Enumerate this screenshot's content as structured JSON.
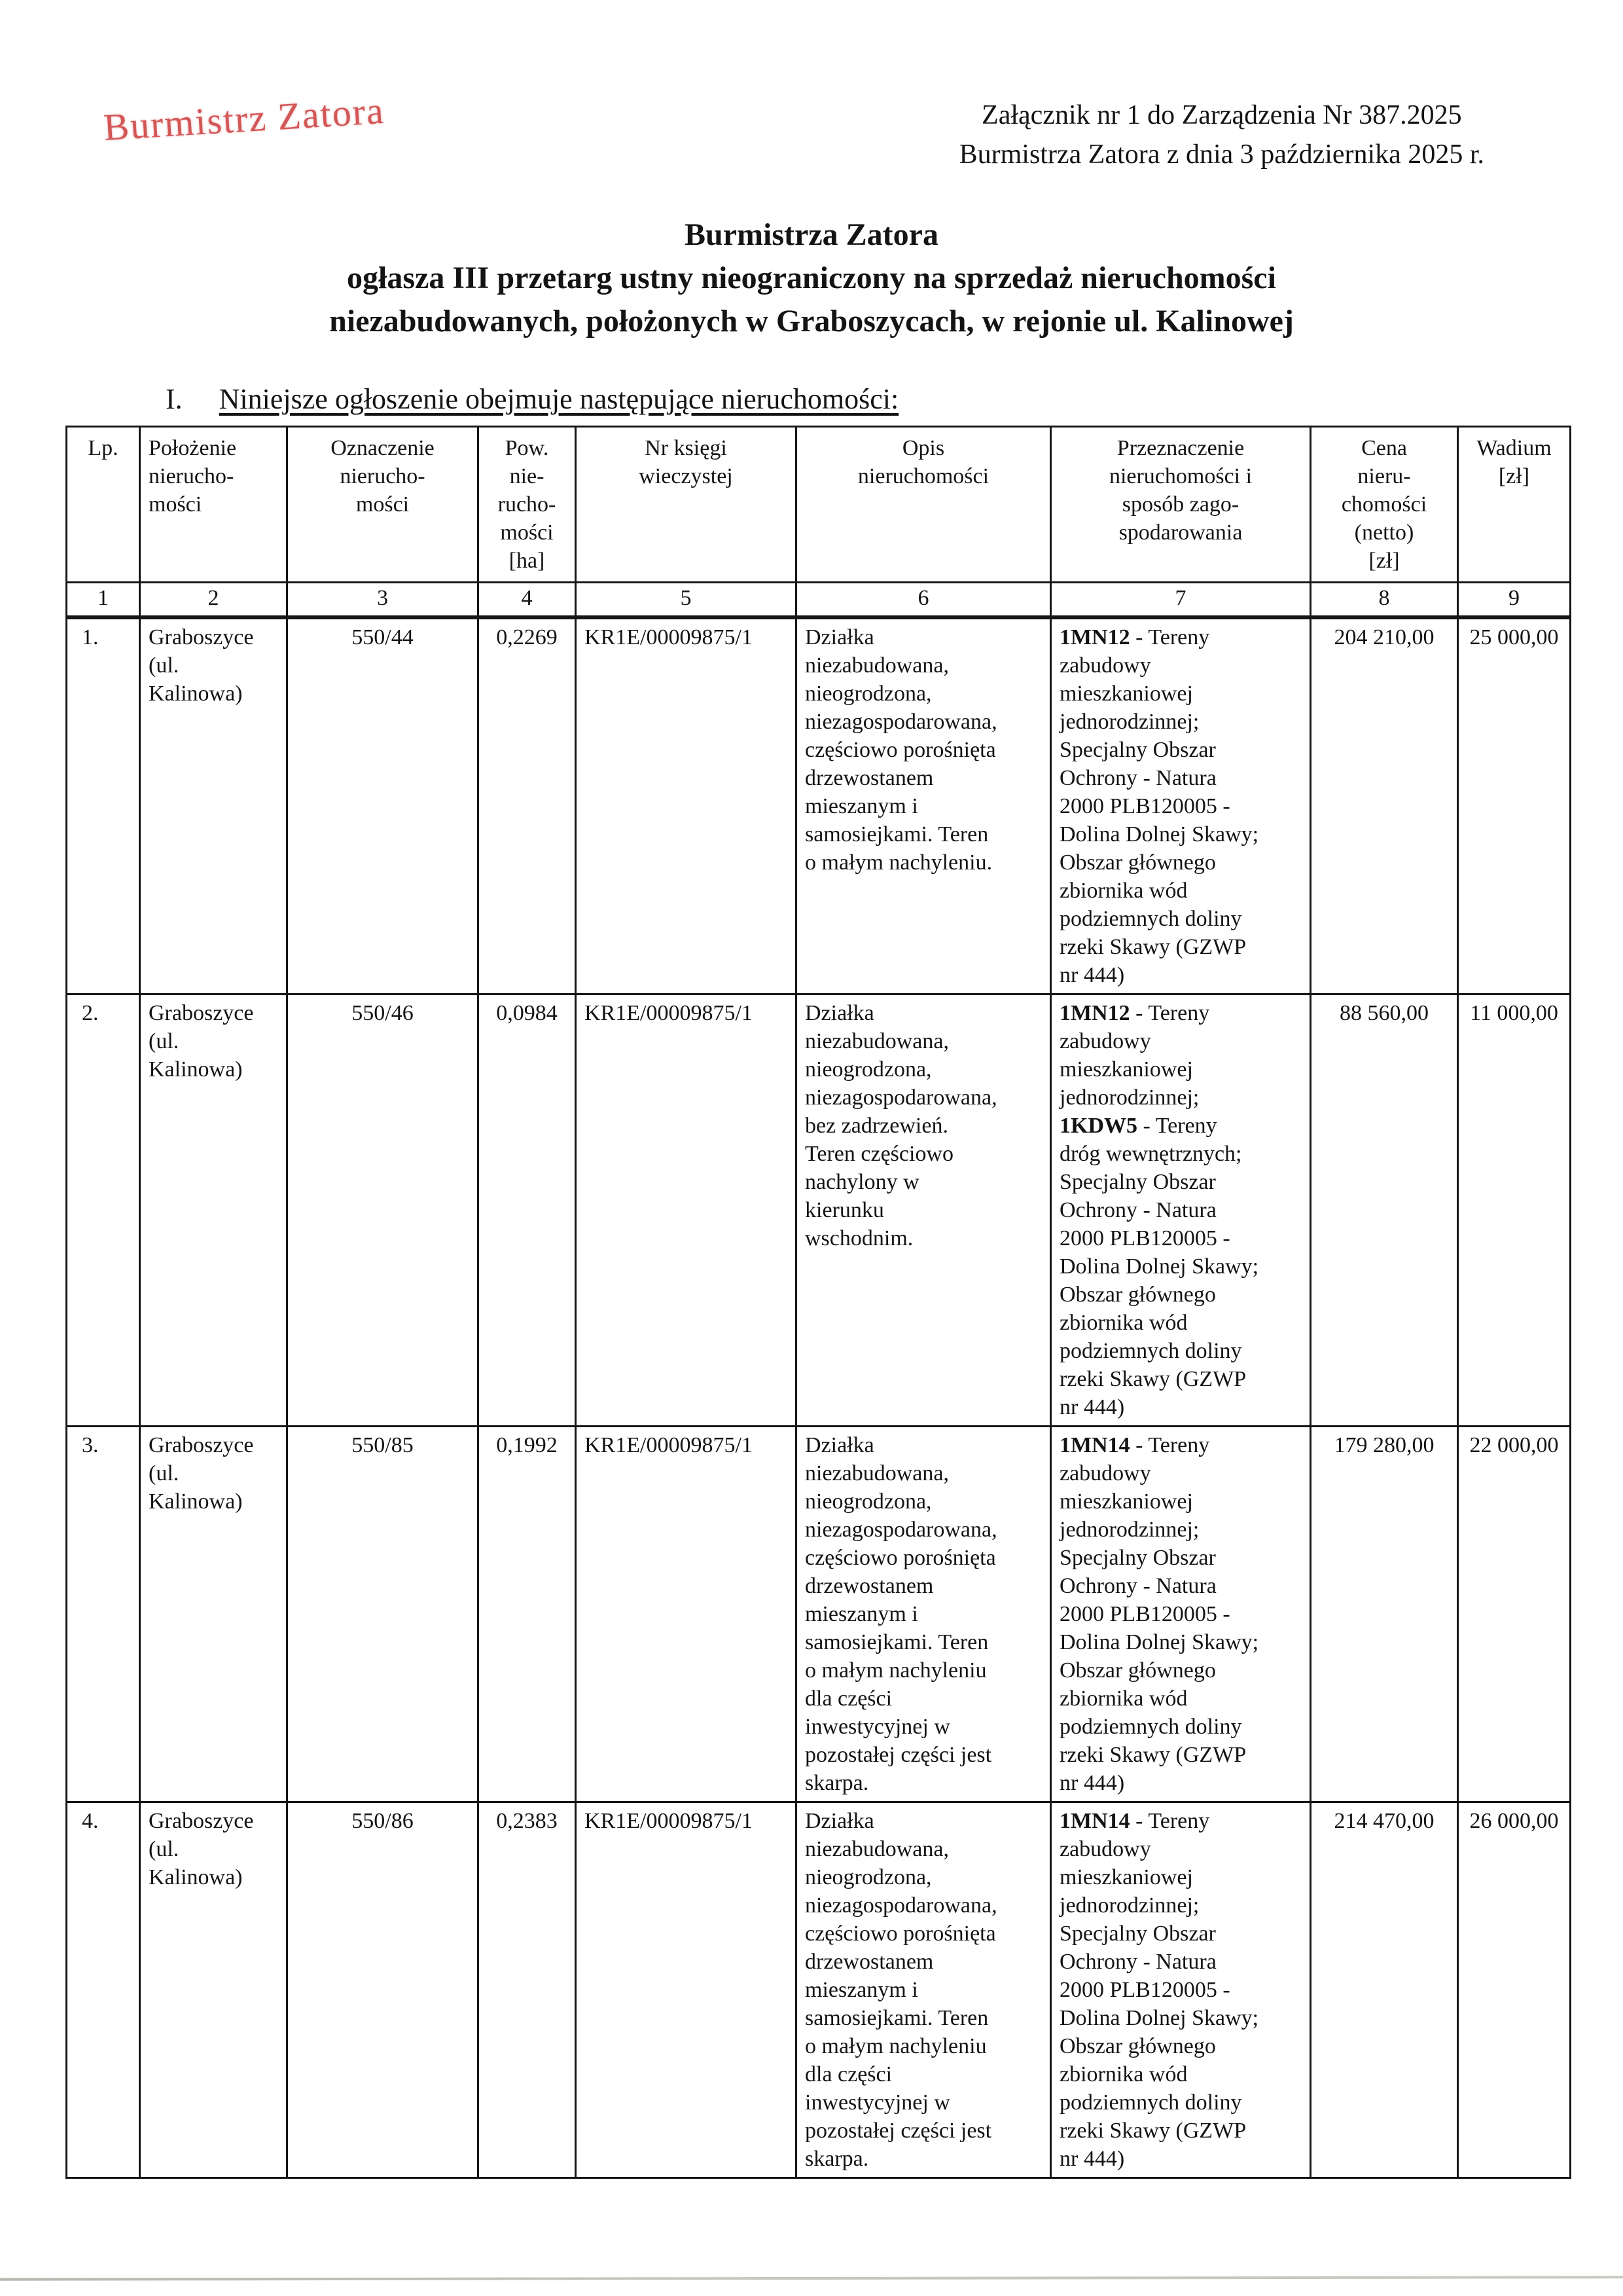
{
  "page": {
    "stamp_text": "Burmistrz Zatora",
    "attachment_line1": "Załącznik nr 1 do Zarządzenia Nr 387.2025",
    "attachment_line2": "Burmistrza Zatora z dnia 3 października 2025 r.",
    "title_line1": "Burmistrza Zatora",
    "title_line2": "ogłasza III przetarg ustny nieograniczony na sprzedaż nieruchomości",
    "title_line3": "niezabudowanych, położonych w Graboszycach, w rejonie ul. Kalinowej",
    "section_numeral": "I.",
    "section_text": "Niniejsze ogłoszenie obejmuje następujące nieruchomości:"
  },
  "colors": {
    "stamp_red": "#ce4040",
    "ink_black": "#141414"
  },
  "table": {
    "headers": [
      "Lp.",
      "Położenie\nnierucho-\nmości",
      "Oznaczenie\nnierucho-\nmości",
      "Pow.\nnie-\nrucho-\nmości\n[ha]",
      "Nr księgi\nwieczystej",
      "Opis\nnieruchomości",
      "Przeznaczenie\nnieruchomości i\nsposób zago-\nspodarowania",
      "Cena\nnieru-\nchomości\n(netto)\n[zł]",
      "Wadium\n[zł]"
    ],
    "column_numbers": [
      "1",
      "2",
      "3",
      "4",
      "5",
      "6",
      "7",
      "8",
      "9"
    ],
    "rows": [
      {
        "lp": "1.",
        "location": "Graboszyce\n(ul. Kalinowa)",
        "plot": "550/44",
        "area_ha": "0,2269",
        "land_register": "KR1E/00009875/1",
        "description": "Działka\nniezabudowana,\nnieogrodzona,\nniezagospodarowana,\nczęściowo porośnięta\ndrzewostanem\nmieszanym i\nsamosiejkami. Teren\no małym nachyleniu.",
        "purpose": {
          "text": "1MN12 - Tereny\nzabudowy\nmieszkaniowej\njednorodzinnej;\nSpecjalny Obszar\nOchrony - Natura\n2000 PLB120005 -\nDolina Dolnej Skawy;\nObszar głównego\nzbiornika wód\npodziemnych doliny\nrzeki Skawy (GZWP\nnr 444)",
          "bold": [
            "1MN12"
          ]
        },
        "price_net": "204 210,00",
        "deposit": "25 000,00"
      },
      {
        "lp": "2.",
        "location": "Graboszyce\n(ul. Kalinowa)",
        "plot": "550/46",
        "area_ha": "0,0984",
        "land_register": "KR1E/00009875/1",
        "description": "Działka\nniezabudowana,\nnieogrodzona,\nniezagospodarowana,\nbez zadrzewień.\nTeren częściowo\nnachylony w\nkierunku\nwschodnim.",
        "purpose": {
          "text": "1MN12 - Tereny\nzabudowy\nmieszkaniowej\njednorodzinnej;\n1KDW5 - Tereny\ndróg wewnętrznych;\nSpecjalny Obszar\nOchrony - Natura\n2000 PLB120005 -\nDolina Dolnej Skawy;\nObszar głównego\nzbiornika wód\npodziemnych doliny\nrzeki Skawy (GZWP\nnr 444)",
          "bold": [
            "1MN12",
            "1KDW5"
          ]
        },
        "price_net": "88 560,00",
        "deposit": "11 000,00"
      },
      {
        "lp": "3.",
        "location": "Graboszyce\n(ul. Kalinowa)",
        "plot": "550/85",
        "area_ha": "0,1992",
        "land_register": "KR1E/00009875/1",
        "description": "Działka\nniezabudowana,\nnieogrodzona,\nniezagospodarowana,\nczęściowo porośnięta\ndrzewostanem\nmieszanym i\nsamosiejkami. Teren\no małym nachyleniu\ndla części\ninwestycyjnej w\npozostałej części jest\nskarpa.",
        "purpose": {
          "text": "1MN14 - Tereny\nzabudowy\nmieszkaniowej\njednorodzinnej;\nSpecjalny Obszar\nOchrony - Natura\n2000 PLB120005 -\nDolina Dolnej Skawy;\nObszar głównego\nzbiornika wód\npodziemnych doliny\nrzeki Skawy (GZWP\nnr 444)",
          "bold": [
            "1MN14"
          ]
        },
        "price_net": "179 280,00",
        "deposit": "22 000,00"
      },
      {
        "lp": "4.",
        "location": "Graboszyce\n(ul. Kalinowa)",
        "plot": "550/86",
        "area_ha": "0,2383",
        "land_register": "KR1E/00009875/1",
        "description": "Działka\nniezabudowana,\nnieogrodzona,\nniezagospodarowana,\nczęściowo porośnięta\ndrzewostanem\nmieszanym i\nsamosiejkami. Teren\no małym nachyleniu\ndla części\ninwestycyjnej w\npozostałej części jest\nskarpa.",
        "purpose": {
          "text": "1MN14 - Tereny\nzabudowy\nmieszkaniowej\njednorodzinnej;\nSpecjalny Obszar\nOchrony - Natura\n2000 PLB120005 -\nDolina Dolnej Skawy;\nObszar głównego\nzbiornika wód\npodziemnych doliny\nrzeki Skawy (GZWP\nnr 444)",
          "bold": [
            "1MN14"
          ]
        },
        "price_net": "214 470,00",
        "deposit": "26 000,00"
      }
    ]
  }
}
